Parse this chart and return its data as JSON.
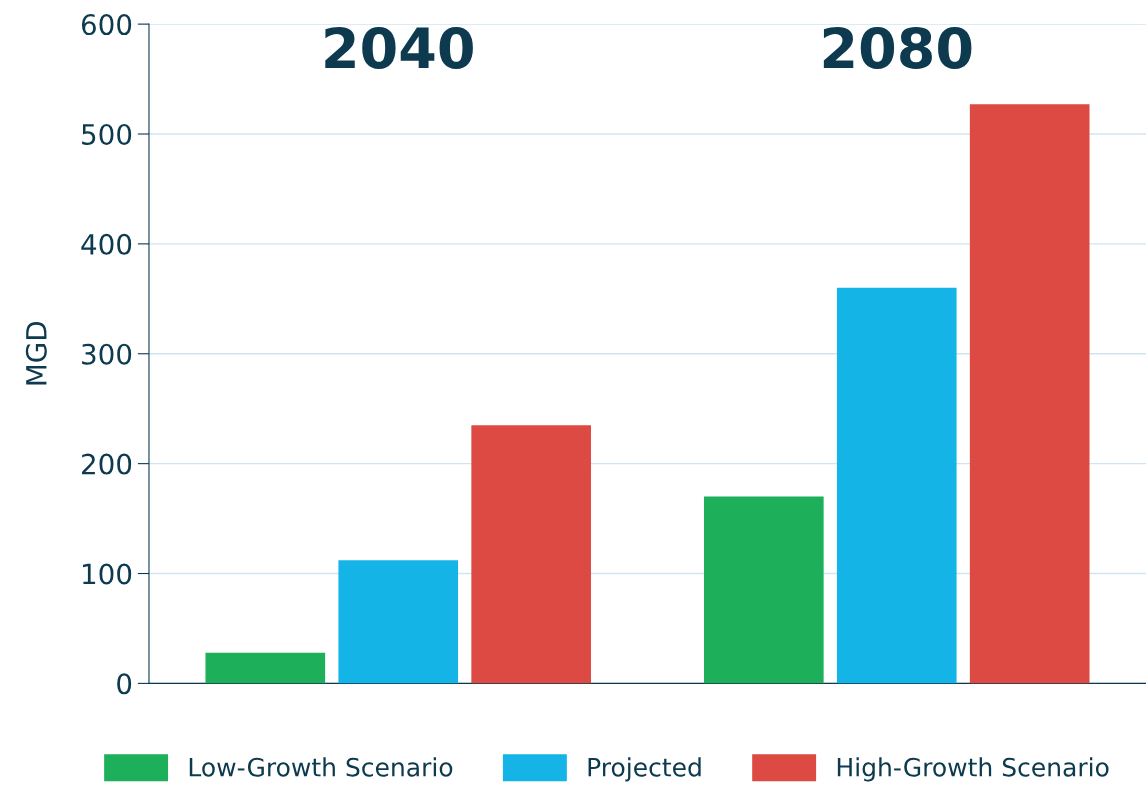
{
  "chart_data": {
    "type": "bar",
    "ylabel": "MGD",
    "categories": [
      "2040",
      "2080"
    ],
    "series": [
      {
        "name": "Low-Growth Scenario",
        "color": "#1eaf5a",
        "values": [
          28,
          170
        ]
      },
      {
        "name": "Projected",
        "color": "#14b4e6",
        "values": [
          112,
          360
        ]
      },
      {
        "name": "High-Growth Scenario",
        "color": "#dc4a43",
        "values": [
          235,
          527
        ]
      }
    ],
    "ylim": [
      0,
      600
    ],
    "yticks": [
      0,
      100,
      200,
      300,
      400,
      500,
      600
    ],
    "grid": "y",
    "legend": "bottom"
  }
}
